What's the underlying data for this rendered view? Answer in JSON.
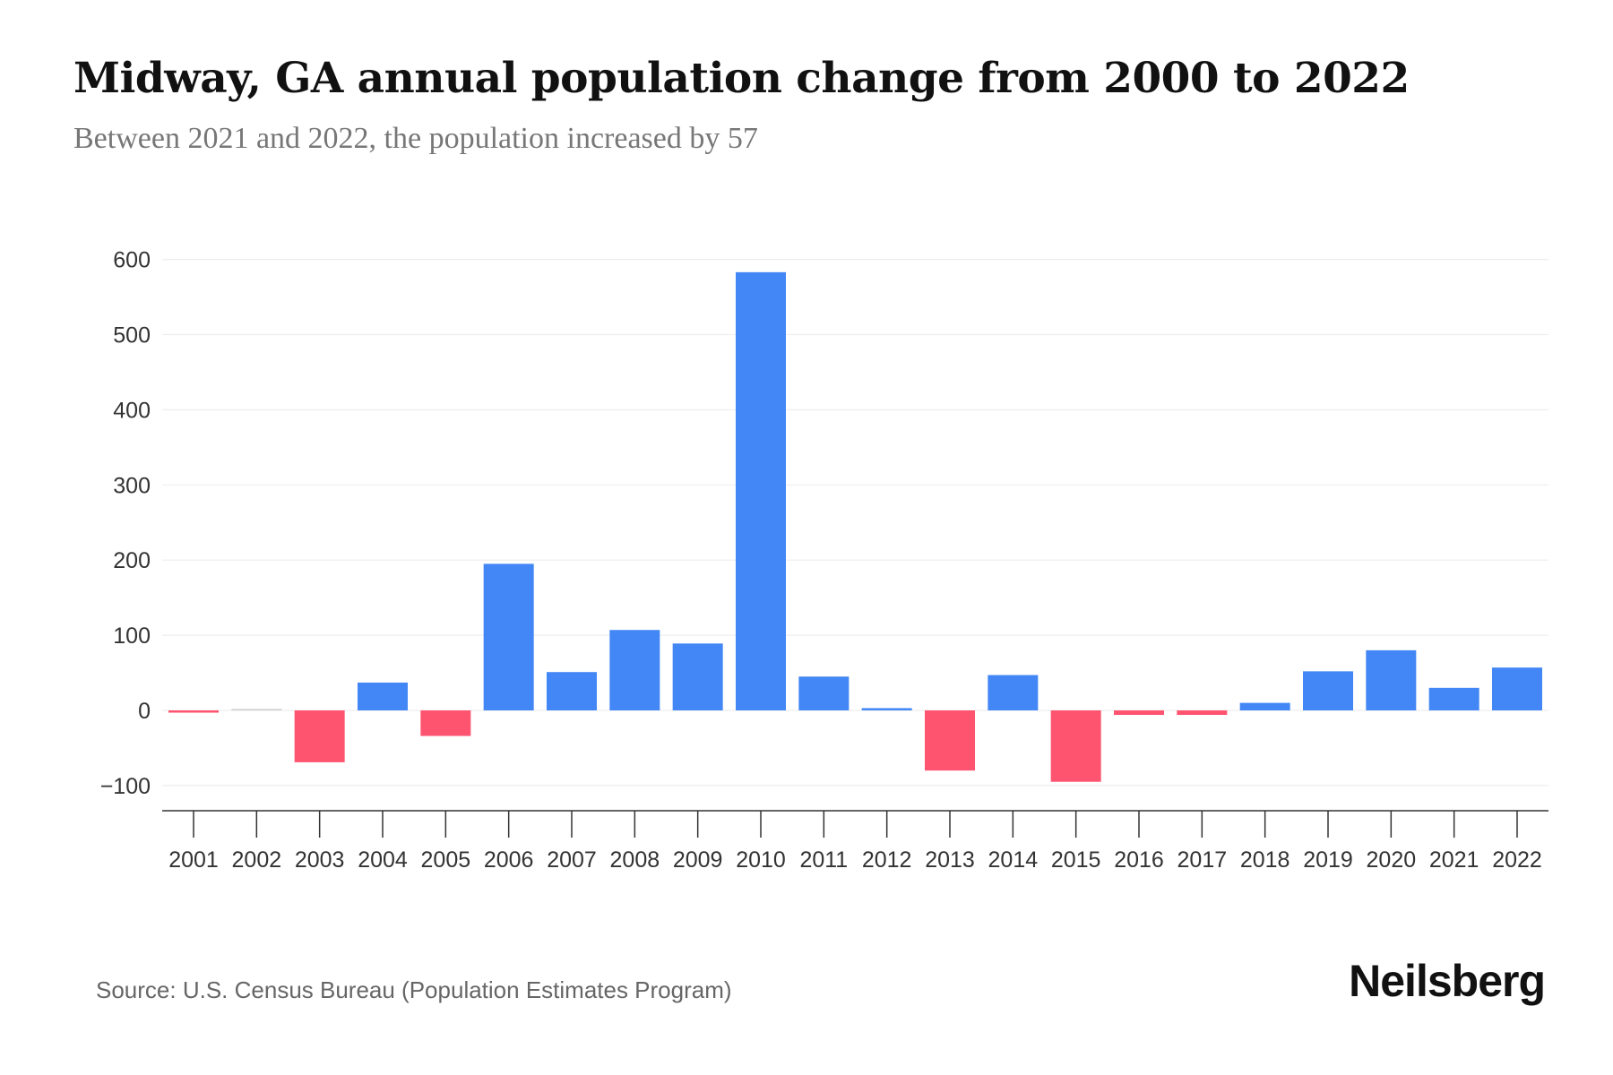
{
  "chart_data": {
    "type": "bar",
    "title": "Midway, GA annual population change from 2000 to 2022",
    "subtitle": "Between 2021 and 2022, the population increased by 57",
    "xlabel": "",
    "ylabel": "",
    "categories": [
      "2001",
      "2002",
      "2003",
      "2004",
      "2005",
      "2006",
      "2007",
      "2008",
      "2009",
      "2010",
      "2011",
      "2012",
      "2013",
      "2014",
      "2015",
      "2016",
      "2017",
      "2018",
      "2019",
      "2020",
      "2021",
      "2022"
    ],
    "values": [
      -3,
      0,
      -69,
      37,
      -34,
      195,
      51,
      107,
      89,
      583,
      45,
      3,
      -80,
      47,
      -95,
      -6,
      -6,
      10,
      52,
      80,
      30,
      57
    ],
    "ylim": [
      -130,
      610
    ],
    "yticks": [
      -100,
      0,
      100,
      200,
      300,
      400,
      500,
      600
    ],
    "ytick_labels": [
      "−100",
      "0",
      "100",
      "200",
      "300",
      "400",
      "500",
      "600"
    ],
    "grid": true,
    "colors": {
      "positive": "#4287f5",
      "negative": "#ff5470",
      "zero": "#cccccc"
    }
  },
  "source": "Source: U.S. Census Bureau (Population Estimates Program)",
  "logo": "Neilsberg"
}
